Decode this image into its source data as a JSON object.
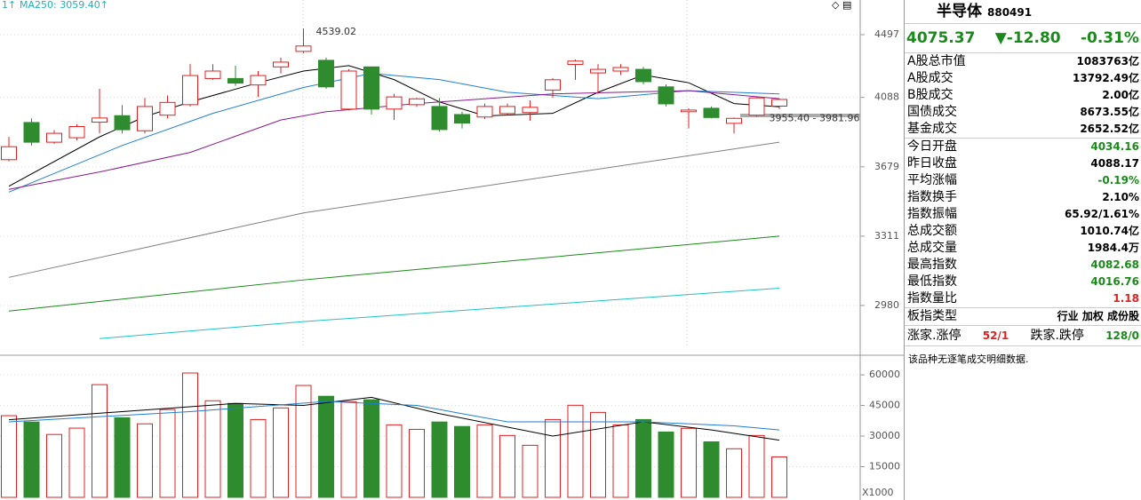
{
  "chart_data": [
    {
      "type": "candlestick",
      "legend_text": [
        "1↑",
        "MA250: 3059.40↑"
      ],
      "log_scale": true,
      "ylim": [
        2763,
        4740
      ],
      "yticks": [
        4497,
        4088,
        3679,
        3311,
        2980
      ],
      "up_color": "#e02020",
      "down_color": "#2e8b2e",
      "open": [
        3719,
        3935,
        3819,
        3845,
        3937,
        3976,
        3886,
        3979,
        4043,
        4207,
        4207,
        4166,
        4282,
        4384,
        4325,
        4016,
        4282,
        4016,
        4043,
        4032,
        3983,
        3968,
        3989,
        3995,
        4134,
        4298,
        4243,
        4255,
        4266,
        4154,
        4000,
        4021,
        3930,
        3979,
        4034.16
      ],
      "high": [
        3850,
        3960,
        3890,
        3925,
        4142,
        4040,
        4085,
        4100,
        4300,
        4300,
        4290,
        4255,
        4343,
        4539.02,
        4343,
        4266,
        4282,
        4110,
        4085,
        4085,
        4000,
        4050,
        4050,
        4070,
        4210,
        4330,
        4300,
        4300,
        4282,
        4170,
        4021,
        4032,
        3965,
        4090,
        4082.68
      ],
      "low": [
        3710,
        3800,
        3810,
        3830,
        3870,
        3870,
        3870,
        3960,
        4032,
        4199,
        4160,
        4091,
        4240,
        4372,
        4142,
        4008,
        3983,
        3950,
        4030,
        3880,
        3900,
        3955,
        3980,
        3945,
        4085,
        4199,
        4110,
        4230,
        4170,
        4032,
        3900,
        3960,
        3870,
        3970,
        4016.76
      ],
      "close": [
        3793,
        3819,
        3871,
        3911,
        3962,
        3892,
        4032,
        4057,
        4226,
        4255,
        4178,
        4226,
        4313,
        4420,
        4154,
        4255,
        4016,
        4091,
        4079,
        3893,
        3932,
        4032,
        4032,
        4027,
        4199,
        4320,
        4266,
        4278,
        4187,
        4048,
        4010,
        3965,
        3960,
        4085,
        4075.37
      ],
      "lines": [
        {
          "color": "#000000",
          "x": [
            0,
            4,
            6,
            8,
            11,
            13,
            15,
            17,
            19,
            21,
            24,
            26,
            28,
            30,
            32,
            34
          ],
          "values": [
            3572,
            3850,
            3970,
            4060,
            4180,
            4255,
            4290,
            4200,
            4060,
            3975,
            3990,
            4120,
            4230,
            4180,
            4050,
            4030
          ]
        },
        {
          "color": "#1f7fd0",
          "x": [
            0,
            5,
            9,
            13,
            16,
            19,
            22,
            26,
            30,
            34
          ],
          "values": [
            3540,
            3800,
            3990,
            4150,
            4240,
            4200,
            4120,
            4080,
            4130,
            4110
          ]
        },
        {
          "color": "#8a1a8a",
          "x": [
            0,
            4,
            8,
            12,
            14,
            18,
            24,
            30,
            34
          ],
          "values": [
            3555,
            3650,
            3760,
            3950,
            4000,
            4050,
            4110,
            4130,
            4080
          ]
        },
        {
          "color": "#808080",
          "x": [
            0,
            13,
            34
          ],
          "values": [
            3110,
            3430,
            3819
          ]
        },
        {
          "color": "#1a8a1a",
          "x": [
            0,
            13,
            34
          ],
          "values": [
            2955,
            3098,
            3311
          ]
        },
        {
          "color": "#20c0c8",
          "x": [
            4,
            13,
            34
          ],
          "values": [
            2834,
            2908,
            3059.4
          ]
        }
      ],
      "annotations": [
        {
          "index": 13,
          "text": "4539.02"
        },
        {
          "index": 33,
          "text": "3955.40 - 3981.96"
        }
      ]
    },
    {
      "type": "bar",
      "axis_label": "X1000",
      "ylim": [
        0,
        69600
      ],
      "yticks": [
        15000,
        30000,
        45000,
        60000
      ],
      "values": [
        40000,
        36900,
        30800,
        33900,
        55200,
        39000,
        36000,
        43000,
        60900,
        47300,
        46000,
        38100,
        43800,
        54800,
        49500,
        46900,
        47800,
        35500,
        33300,
        36900,
        34700,
        35500,
        30300,
        25500,
        38100,
        45100,
        41600,
        35500,
        38100,
        32000,
        33800,
        27200,
        23800,
        30300,
        19800
      ],
      "lines": [
        {
          "color": "#000000",
          "x": [
            0,
            5,
            10,
            13,
            16,
            19,
            24,
            28,
            31,
            34
          ],
          "values": [
            38000,
            42000,
            46000,
            45000,
            49000,
            41000,
            30000,
            37000,
            33000,
            28000
          ]
        },
        {
          "color": "#1f7fd0",
          "x": [
            0,
            8,
            14,
            18,
            22,
            28,
            32,
            34
          ],
          "values": [
            37000,
            42000,
            47000,
            45000,
            37000,
            37000,
            35000,
            33000
          ]
        }
      ]
    }
  ],
  "panel": {
    "title": "半导体",
    "code": "880491",
    "price": "4075.37",
    "change": "▼-12.80",
    "change_pct": "-0.31%",
    "rows": [
      {
        "label": "A股总市值",
        "value": "1083763亿",
        "color": "#000"
      },
      {
        "label": "A股成交",
        "value": "13792.49亿",
        "color": "#000"
      },
      {
        "label": "B股成交",
        "value": "2.00亿",
        "color": "#000"
      },
      {
        "label": "国债成交",
        "value": "8673.55亿",
        "color": "#000"
      },
      {
        "label": "基金成交",
        "value": "2652.52亿",
        "color": "#000"
      },
      {
        "label": "今日开盘",
        "value": "4034.16",
        "color": "#1a8a1a"
      },
      {
        "label": "昨日收盘",
        "value": "4088.17",
        "color": "#000"
      },
      {
        "label": "平均涨幅",
        "value": "-0.19%",
        "color": "#1a8a1a"
      },
      {
        "label": "指数换手",
        "value": "2.10%",
        "color": "#000"
      },
      {
        "label": "指数振幅",
        "value": "65.92/1.61%",
        "color": "#000"
      },
      {
        "label": "总成交额",
        "value": "1010.74亿",
        "color": "#000"
      },
      {
        "label": "总成交量",
        "value": "1984.4万",
        "color": "#000"
      },
      {
        "label": "最高指数",
        "value": "4082.68",
        "color": "#1a8a1a"
      },
      {
        "label": "最低指数",
        "value": "4016.76",
        "color": "#1a8a1a"
      },
      {
        "label": "指数量比",
        "value": "1.18",
        "color": "#e02020"
      },
      {
        "label": "板指类型",
        "value": "行业 加权 成份股",
        "color": "#000"
      }
    ],
    "last_row": [
      "涨家.涨停",
      "52/1",
      "跌家.跌停",
      "128/0"
    ],
    "note": "该品种无逐笔成交明细数据."
  }
}
